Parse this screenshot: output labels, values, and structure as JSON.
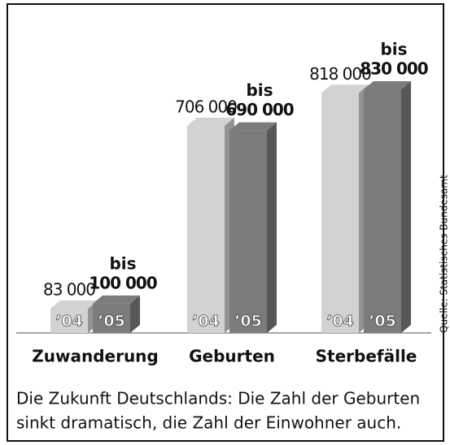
{
  "chart_data": {
    "type": "bar3d",
    "categories": [
      "Zuwanderung",
      "Geburten",
      "Sterbefälle"
    ],
    "label_prefix": "bis",
    "series": [
      {
        "name": "’04",
        "color": "#d2d2d2",
        "values": [
          83000,
          706000,
          818000
        ],
        "value_labels": [
          "83 000",
          "706 000",
          "818 000"
        ]
      },
      {
        "name": "’05",
        "color": "#7c7c7c",
        "values": [
          100000,
          690000,
          830000
        ],
        "value_labels": [
          "100 000",
          "690 000",
          "830 000"
        ]
      }
    ],
    "caption": [
      "Die Zukunft Deutschlands: Die Zahl der Geburten",
      "sinkt dramatisch, die Zahl der Einwohner auch."
    ],
    "source": "Quelle: Statistisches Bundesamt"
  }
}
